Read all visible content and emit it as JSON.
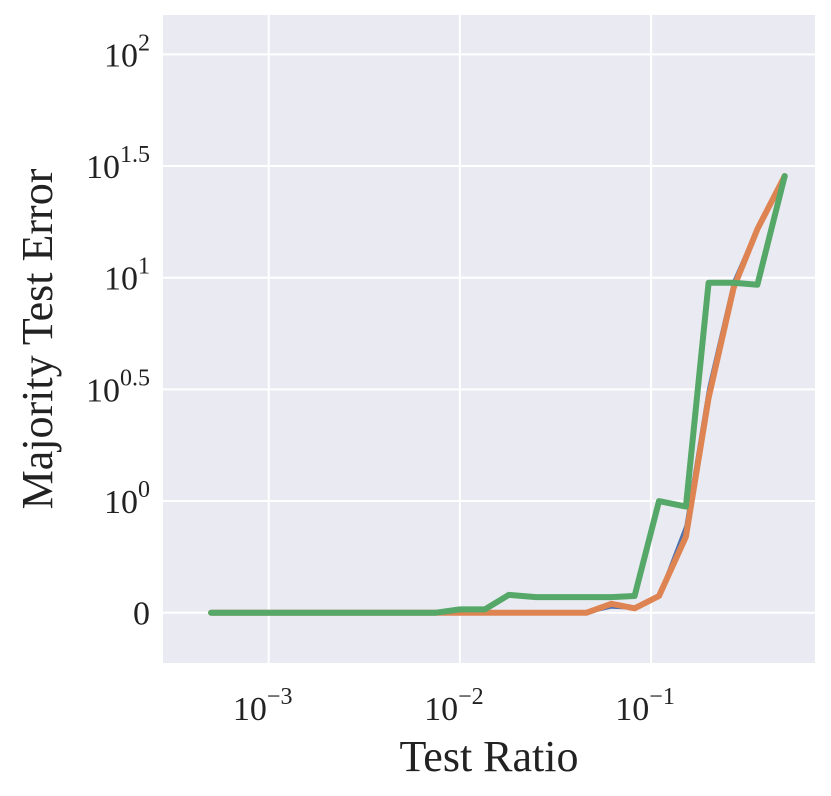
{
  "chart_data": {
    "type": "line",
    "title": "",
    "xlabel": "Test Ratio",
    "ylabel": "Majority Test Error",
    "x_scale": "log",
    "y_scale": "symlog",
    "xlim": [
      0.00028,
      0.72
    ],
    "ylim": [
      -0.45,
      150
    ],
    "grid": true,
    "background": "#eaeaf2",
    "grid_color": "#ffffff",
    "x_ticks": [
      {
        "base": "10",
        "exp": "−3",
        "value": 0.001
      },
      {
        "base": "10",
        "exp": "−2",
        "value": 0.01
      },
      {
        "base": "10",
        "exp": "−1",
        "value": 0.1
      }
    ],
    "y_ticks": [
      {
        "base": "0",
        "exp": "",
        "value": 0
      },
      {
        "base": "10",
        "exp": "0",
        "value": 1
      },
      {
        "base": "10",
        "exp": "0.5",
        "value": 3.1623
      },
      {
        "base": "10",
        "exp": "1",
        "value": 10
      },
      {
        "base": "10",
        "exp": "1.5",
        "value": 31.623
      },
      {
        "base": "10",
        "exp": "2",
        "value": 100
      }
    ],
    "series": [
      {
        "color": "#4c72b0",
        "linewidth": 3,
        "x": [
          0.0005,
          0.001,
          0.002,
          0.005,
          0.0075,
          0.01,
          0.0135,
          0.018,
          0.025,
          0.035,
          0.046,
          0.062,
          0.082,
          0.11,
          0.152,
          0.2,
          0.27,
          0.36,
          0.5
        ],
        "y": [
          0,
          0,
          0,
          0,
          0,
          0,
          0,
          0,
          0,
          0,
          0,
          0.05,
          0.04,
          0.15,
          0.78,
          3.2,
          9.6,
          16.7,
          28.5
        ]
      },
      {
        "color": "#dd8452",
        "linewidth": 6,
        "x": [
          0.0005,
          0.001,
          0.002,
          0.005,
          0.0075,
          0.01,
          0.0135,
          0.018,
          0.025,
          0.035,
          0.046,
          0.062,
          0.082,
          0.11,
          0.152,
          0.2,
          0.27,
          0.36,
          0.5
        ],
        "y": [
          0,
          0,
          0,
          0,
          0,
          0,
          0,
          0,
          0,
          0,
          0,
          0.08,
          0.04,
          0.15,
          0.68,
          2.9,
          9.0,
          16.5,
          28.5
        ]
      },
      {
        "color": "#55a868",
        "linewidth": 6,
        "x": [
          0.0005,
          0.001,
          0.002,
          0.005,
          0.0075,
          0.01,
          0.0135,
          0.018,
          0.025,
          0.035,
          0.046,
          0.062,
          0.082,
          0.11,
          0.152,
          0.2,
          0.27,
          0.36,
          0.5
        ],
        "y": [
          0,
          0,
          0,
          0,
          0,
          0.03,
          0.03,
          0.16,
          0.14,
          0.14,
          0.14,
          0.14,
          0.15,
          1.0,
          0.95,
          9.5,
          9.5,
          9.3,
          28.5
        ]
      }
    ]
  }
}
